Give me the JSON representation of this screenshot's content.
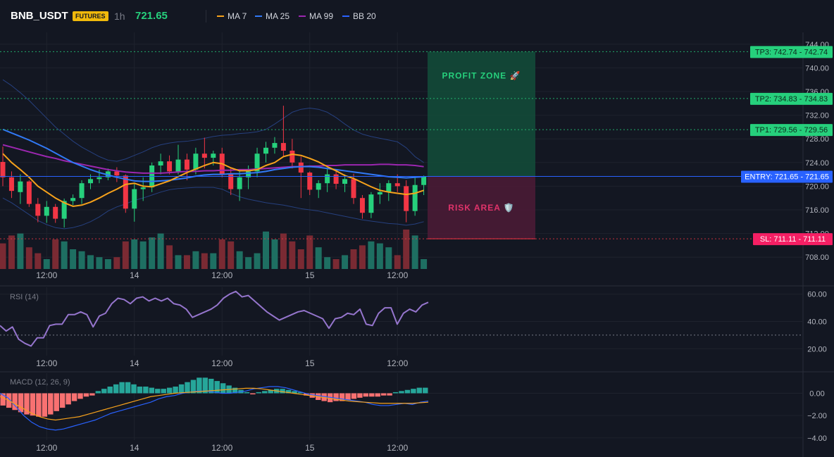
{
  "header": {
    "symbol": "BNB_USDT",
    "badge": "FUTURES",
    "timeframe": "1h",
    "price": "721.65",
    "indicators": [
      {
        "label": "MA 7",
        "color": "#f7a21b"
      },
      {
        "label": "MA 25",
        "color": "#3179f5"
      },
      {
        "label": "MA 99",
        "color": "#9c27b0"
      },
      {
        "label": "BB 20",
        "color": "#2962ff"
      }
    ]
  },
  "colors": {
    "bull": "#26d07c",
    "bear": "#f23645",
    "volBull": "#1e6f62",
    "volBear": "#7a2a33",
    "grid": "#1e222d",
    "axisText": "#b2b5be",
    "profit": "#134d3a",
    "risk": "#4a1b35",
    "entryLine": "#2962ff",
    "tpLine": "#26d07c",
    "slLine": "#f23645",
    "rsi": "#9575cd",
    "macd": "#2962ff",
    "signal": "#f7a21b",
    "histUp": "#26a69a",
    "histDown": "#f87171"
  },
  "chart_data": [
    {
      "type": "candlestick",
      "title": "BNB_USDT",
      "ylim": [
        706,
        746
      ],
      "yticks": [
        708,
        712,
        716,
        720,
        724,
        728,
        732,
        736,
        740,
        744
      ],
      "ytick_labels": [
        "708.00",
        "712.00",
        "716.00",
        "720.00",
        "724.00",
        "728.00",
        "732.00",
        "736.00",
        "740.00",
        "744.00"
      ],
      "xtick_labels": [
        {
          "label": "12:00",
          "i": 5
        },
        {
          "label": "14",
          "i": 15
        },
        {
          "label": "12:00",
          "i": 25
        },
        {
          "label": "15",
          "i": 35
        },
        {
          "label": "12:00",
          "i": 45
        }
      ],
      "candles": [
        [
          724.1,
          726.7,
          720.0,
          721.5
        ],
        [
          721.5,
          722.5,
          718.0,
          719.2
        ],
        [
          719.0,
          722.0,
          717.0,
          720.8
        ],
        [
          720.8,
          721.0,
          716.5,
          717.0
        ],
        [
          717.0,
          718.0,
          713.9,
          715.0
        ],
        [
          715.0,
          717.5,
          713.8,
          716.5
        ],
        [
          716.5,
          717.0,
          713.8,
          714.5
        ],
        [
          714.5,
          717.9,
          713.0,
          717.5
        ],
        [
          717.5,
          718.6,
          716.8,
          718.0
        ],
        [
          718.0,
          721.0,
          717.0,
          720.5
        ],
        [
          720.5,
          722.0,
          719.5,
          721.2
        ],
        [
          721.2,
          722.8,
          720.5,
          721.5
        ],
        [
          721.5,
          723.0,
          721.0,
          722.5
        ],
        [
          722.5,
          723.2,
          720.7,
          721.8
        ],
        [
          721.8,
          722.0,
          715.5,
          716.2
        ],
        [
          716.2,
          720.5,
          714.0,
          719.5
        ],
        [
          719.5,
          721.5,
          717.5,
          719.8
        ],
        [
          719.8,
          724.0,
          719.0,
          723.5
        ],
        [
          723.5,
          725.5,
          722.0,
          724.2
        ],
        [
          724.2,
          725.2,
          722.0,
          722.5
        ],
        [
          722.5,
          727.0,
          722.0,
          724.5
        ],
        [
          724.5,
          725.5,
          721.0,
          722.8
        ],
        [
          722.8,
          726.5,
          722.0,
          725.5
        ],
        [
          725.5,
          728.2,
          723.0,
          724.8
        ],
        [
          724.8,
          726.0,
          723.5,
          725.5
        ],
        [
          725.5,
          726.5,
          721.5,
          722.0
        ],
        [
          722.0,
          723.0,
          718.5,
          719.5
        ],
        [
          719.5,
          722.5,
          717.5,
          721.5
        ],
        [
          721.5,
          723.5,
          719.5,
          722.5
        ],
        [
          722.5,
          726.5,
          721.5,
          725.5
        ],
        [
          725.5,
          727.5,
          724.0,
          726.5
        ],
        [
          726.5,
          728.3,
          725.5,
          727.3
        ],
        [
          727.3,
          733.6,
          725.0,
          726.0
        ],
        [
          726.0,
          728.0,
          723.0,
          724.0
        ],
        [
          724.0,
          725.0,
          718.0,
          722.3
        ],
        [
          722.3,
          722.5,
          718.5,
          719.4
        ],
        [
          719.4,
          721.0,
          718.0,
          720.5
        ],
        [
          720.5,
          723.0,
          719.0,
          722.0
        ],
        [
          722.0,
          722.5,
          719.5,
          720.4
        ],
        [
          720.4,
          722.0,
          719.0,
          721.2
        ],
        [
          721.2,
          722.1,
          717.0,
          718.0
        ],
        [
          718.0,
          718.5,
          714.5,
          715.5
        ],
        [
          715.5,
          719.0,
          714.6,
          718.6
        ],
        [
          718.6,
          720.5,
          717.0,
          719.0
        ],
        [
          719.0,
          721.0,
          717.5,
          720.5
        ],
        [
          720.5,
          722.0,
          719.0,
          720.0
        ],
        [
          720.0,
          721.0,
          713.9,
          715.8
        ],
        [
          715.8,
          721.5,
          715.0,
          720.2
        ],
        [
          720.2,
          721.8,
          718.5,
          721.65
        ]
      ],
      "volume": [
        26,
        34,
        36,
        22,
        16,
        10,
        30,
        28,
        20,
        18,
        14,
        12,
        10,
        12,
        28,
        30,
        28,
        32,
        36,
        24,
        14,
        14,
        18,
        16,
        16,
        30,
        28,
        18,
        12,
        16,
        38,
        30,
        36,
        28,
        20,
        34,
        22,
        12,
        10,
        14,
        20,
        24,
        28,
        26,
        22,
        14,
        40,
        34,
        10
      ],
      "ma7": [
        725.5,
        724.0,
        722.8,
        721.5,
        720.0,
        719.0,
        718.0,
        717.2,
        716.6,
        716.8,
        717.3,
        718.0,
        718.8,
        719.5,
        720.3,
        720.5,
        720.0,
        719.9,
        720.4,
        720.9,
        721.6,
        722.3,
        722.9,
        723.5,
        724.0,
        723.8,
        723.1,
        722.6,
        722.6,
        722.8,
        723.5,
        724.0,
        725.0,
        725.4,
        725.2,
        724.7,
        724.1,
        723.3,
        722.6,
        721.8,
        721.3,
        720.6,
        719.9,
        719.3,
        719.0,
        718.8,
        718.6,
        718.8,
        719.3
      ],
      "ma25": [
        729.6,
        729.0,
        728.4,
        727.8,
        727.1,
        726.4,
        725.6,
        724.8,
        724.0,
        723.4,
        722.8,
        722.3,
        721.9,
        721.5,
        721.2,
        720.9,
        720.8,
        720.8,
        720.9,
        721.0,
        721.2,
        721.4,
        721.7,
        721.9,
        722.0,
        722.0,
        722.1,
        722.1,
        722.2,
        722.3,
        722.5,
        722.8,
        723.0,
        723.2,
        723.3,
        723.3,
        723.2,
        723.0,
        722.8,
        722.6,
        722.4,
        722.2,
        722.0,
        721.8,
        721.6,
        721.5,
        721.4,
        721.5,
        721.6
      ],
      "ma99": [
        727.0,
        726.6,
        726.2,
        725.8,
        725.4,
        725.0,
        724.7,
        724.3,
        724.0,
        723.7,
        723.4,
        723.1,
        722.8,
        722.6,
        722.4,
        722.3,
        722.2,
        722.2,
        722.2,
        722.3,
        722.4,
        722.5,
        722.5,
        722.6,
        722.6,
        722.7,
        722.7,
        722.8,
        722.8,
        722.9,
        723.0,
        723.1,
        723.2,
        723.3,
        723.3,
        723.4,
        723.4,
        723.5,
        723.5,
        723.6,
        723.6,
        723.6,
        723.6,
        723.7,
        723.7,
        723.6,
        723.6,
        723.5,
        723.3
      ],
      "bbUpper": [
        738.0,
        737.0,
        735.8,
        734.5,
        733.0,
        731.5,
        730.0,
        728.8,
        727.6,
        726.6,
        725.8,
        725.0,
        724.4,
        724.2,
        724.6,
        725.2,
        725.8,
        726.5,
        727.0,
        727.3,
        727.5,
        727.6,
        727.8,
        728.1,
        728.4,
        728.6,
        728.7,
        728.9,
        729.0,
        729.2,
        729.6,
        730.5,
        731.5,
        732.5,
        733.0,
        733.2,
        733.0,
        732.5,
        731.6,
        730.5,
        729.5,
        728.8,
        728.4,
        728.1,
        727.8,
        727.5,
        726.5,
        725.0,
        724.0
      ],
      "bbLower": [
        718.0,
        717.2,
        716.2,
        715.2,
        714.2,
        713.5,
        713.0,
        712.8,
        713.0,
        713.4,
        714.0,
        714.8,
        715.8,
        716.5,
        717.0,
        717.6,
        718.0,
        718.5,
        719.0,
        719.4,
        719.6,
        719.7,
        719.8,
        719.8,
        719.8,
        719.5,
        718.8,
        718.2,
        717.8,
        717.5,
        717.2,
        717.0,
        716.8,
        716.5,
        716.2,
        716.0,
        715.8,
        715.5,
        715.2,
        714.9,
        714.6,
        714.3,
        714.1,
        713.9,
        713.7,
        713.6,
        713.4,
        713.6,
        714.0
      ],
      "position": {
        "entry": 721.65,
        "tp1": 729.56,
        "tp2": 734.83,
        "tp3": 742.74,
        "sl": 711.11,
        "profit_label": "PROFIT ZONE 🚀",
        "risk_label": "RISK AREA 🛡️"
      },
      "price_tags": [
        {
          "label": "TP3: 742.74 - 742.74",
          "value": 742.74,
          "kind": "tp"
        },
        {
          "label": "TP2: 734.83 - 734.83",
          "value": 734.83,
          "kind": "tp"
        },
        {
          "label": "TP1: 729.56 - 729.56",
          "value": 729.56,
          "kind": "tp"
        },
        {
          "label": "ENTRY: 721.65 - 721.65",
          "value": 721.65,
          "kind": "entry"
        },
        {
          "label": "SL: 711.11 - 711.11",
          "value": 711.11,
          "kind": "sl"
        }
      ]
    },
    {
      "type": "line",
      "title": "RSI (14)",
      "ylim": [
        15,
        65
      ],
      "yticks": [
        20,
        40,
        60
      ],
      "ytick_labels": [
        "20.00",
        "40.00",
        "60.00"
      ],
      "reference_line": 30,
      "values": [
        37,
        33,
        36,
        27,
        24,
        22,
        28,
        28,
        37,
        38,
        38,
        45,
        45,
        47,
        45,
        36,
        44,
        46,
        53,
        57,
        56,
        53,
        57,
        58,
        55,
        57,
        55,
        57,
        53,
        52,
        49,
        43,
        45,
        47,
        49,
        52,
        57,
        60,
        62,
        58,
        59,
        55,
        51,
        47,
        44,
        41,
        43,
        45,
        47,
        48,
        46,
        44,
        42,
        35,
        42,
        43,
        46,
        45,
        49,
        38,
        37,
        46,
        50,
        50,
        38,
        46,
        49,
        47,
        52,
        54
      ]
    },
    {
      "type": "bar+line",
      "title": "MACD (12, 26, 9)",
      "ylim": [
        -4.2,
        1.8
      ],
      "yticks": [
        0,
        -2,
        -4
      ],
      "ytick_labels": [
        "0.00",
        "−2.00",
        "−4.00"
      ],
      "histogram": [
        -1.1,
        -1.3,
        -1.5,
        -1.7,
        -1.9,
        -2.0,
        -2.1,
        -2.1,
        -1.9,
        -1.6,
        -1.3,
        -1.0,
        -0.7,
        -0.5,
        -0.3,
        -0.2,
        0.2,
        0.4,
        0.6,
        0.8,
        1.0,
        1.0,
        0.8,
        0.6,
        0.6,
        0.5,
        0.4,
        0.4,
        0.5,
        0.6,
        0.8,
        1.0,
        1.2,
        1.4,
        1.4,
        1.3,
        1.1,
        0.9,
        0.7,
        0.5,
        0.3,
        0.1,
        -0.1,
        0.1,
        0.2,
        0.3,
        0.4,
        0.4,
        0.3,
        0.2,
        0.1,
        -0.2,
        -0.4,
        -0.6,
        -0.7,
        -0.8,
        -0.7,
        -0.7,
        -0.6,
        -0.5,
        -0.4,
        -0.3,
        -0.3,
        -0.3,
        -0.2,
        -0.2,
        0.1,
        0.2,
        0.3,
        0.4,
        0.5,
        0.5
      ],
      "macd": [
        0.0,
        -0.4,
        -1.2,
        -2.0,
        -2.6,
        -3.0,
        -3.2,
        -3.3,
        -3.2,
        -3.0,
        -2.8,
        -2.6,
        -2.4,
        -2.1,
        -1.8,
        -1.6,
        -1.4,
        -1.2,
        -1.0,
        -0.8,
        -0.5,
        -0.3,
        -0.2,
        0.0,
        0.1,
        0.2,
        0.2,
        0.1,
        0.0,
        0.0,
        0.1,
        0.2,
        0.4,
        0.5,
        0.6,
        0.6,
        0.5,
        0.3,
        0.1,
        -0.1,
        -0.2,
        -0.3,
        -0.4,
        -0.5,
        -0.6,
        -0.7,
        -0.8,
        -1.0,
        -1.1,
        -1.1,
        -1.0,
        -0.9,
        -1.0,
        -0.8,
        -0.7
      ],
      "signal": [
        -0.3,
        -0.6,
        -1.0,
        -1.4,
        -1.8,
        -2.1,
        -2.3,
        -2.4,
        -2.3,
        -2.2,
        -2.1,
        -1.9,
        -1.7,
        -1.5,
        -1.3,
        -1.1,
        -0.9,
        -0.7,
        -0.5,
        -0.3,
        -0.2,
        -0.1,
        0.0,
        0.05,
        0.1,
        0.15,
        0.2,
        0.25,
        0.3,
        0.35,
        0.4,
        0.45,
        0.45,
        0.4,
        0.3,
        0.2,
        0.1,
        0.0,
        -0.1,
        -0.2,
        -0.3,
        -0.4,
        -0.5,
        -0.6,
        -0.7,
        -0.75,
        -0.8,
        -0.85,
        -0.9,
        -0.9,
        -0.9,
        -0.9,
        -0.9,
        -0.85,
        -0.8
      ]
    }
  ]
}
